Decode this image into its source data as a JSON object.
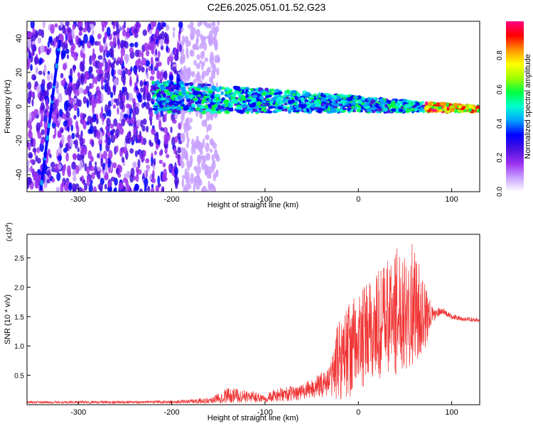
{
  "title": "C2E6.2025.051.01.52.G23",
  "colors": {
    "snr_line": "#f03333",
    "colormap": [
      "#ffffff",
      "#c8a0ff",
      "#9a30f0",
      "#4a10e0",
      "#0000ff",
      "#00a0ff",
      "#00ffd0",
      "#00ff40",
      "#a0ff00",
      "#ffff00",
      "#ff9000",
      "#ff0000",
      "#ff0080"
    ]
  },
  "chart_data": [
    {
      "type": "heatmap",
      "xlabel": "Height of straight line (km)",
      "ylabel": "Frequency (Hz)",
      "xlim": [
        -355,
        130
      ],
      "ylim": [
        -50,
        50
      ],
      "x_ticks": [
        -300,
        -200,
        -100,
        0,
        100
      ],
      "y_ticks": [
        -40,
        -20,
        0,
        20,
        40
      ],
      "colorbar": {
        "label": "Normalized spectral amplitude",
        "range": [
          0,
          1
        ],
        "ticks": [
          "0.0",
          "0.2",
          "0.4",
          "0.6",
          "0.8"
        ],
        "tick_values": [
          0,
          0.2,
          0.4,
          0.6,
          0.8
        ]
      },
      "features": {
        "noise_region_x": [
          -355,
          -190
        ],
        "streak": {
          "x": [
            -340,
            -320
          ],
          "y": [
            -48,
            38
          ]
        },
        "signal_band": {
          "x": [
            -220,
            130
          ],
          "freq_start": 6,
          "freq_end": -1.5
        }
      }
    },
    {
      "type": "line",
      "xlabel": "Height of straight line (km)",
      "ylabel": "SNR (10 * v/v)",
      "y_multiplier": "(x10",
      "y_multiplier_exp": "4",
      "y_multiplier_close": ")",
      "xlim": [
        -355,
        130
      ],
      "ylim": [
        0,
        2.9
      ],
      "x_ticks": [
        -300,
        -200,
        -100,
        0,
        100
      ],
      "y_ticks": [
        0.5,
        1.0,
        1.5,
        2.0,
        2.5
      ],
      "envelope": {
        "x": [
          -355,
          -200,
          -160,
          -140,
          -120,
          -100,
          -80,
          -60,
          -40,
          -30,
          -20,
          0,
          20,
          40,
          50,
          60,
          70,
          80,
          90,
          100,
          110,
          130
        ],
        "low": [
          0.02,
          0.02,
          0.02,
          0.03,
          0.03,
          0.04,
          0.05,
          0.08,
          0.12,
          0.15,
          0.05,
          0.2,
          0.35,
          0.5,
          0.6,
          0.7,
          0.85,
          1.4,
          1.55,
          1.45,
          1.42,
          1.4
        ],
        "high": [
          0.06,
          0.07,
          0.12,
          0.3,
          0.25,
          0.2,
          0.3,
          0.35,
          0.55,
          0.7,
          1.6,
          1.9,
          2.3,
          2.65,
          2.85,
          2.7,
          2.1,
          1.65,
          1.65,
          1.55,
          1.5,
          1.48
        ]
      }
    }
  ]
}
